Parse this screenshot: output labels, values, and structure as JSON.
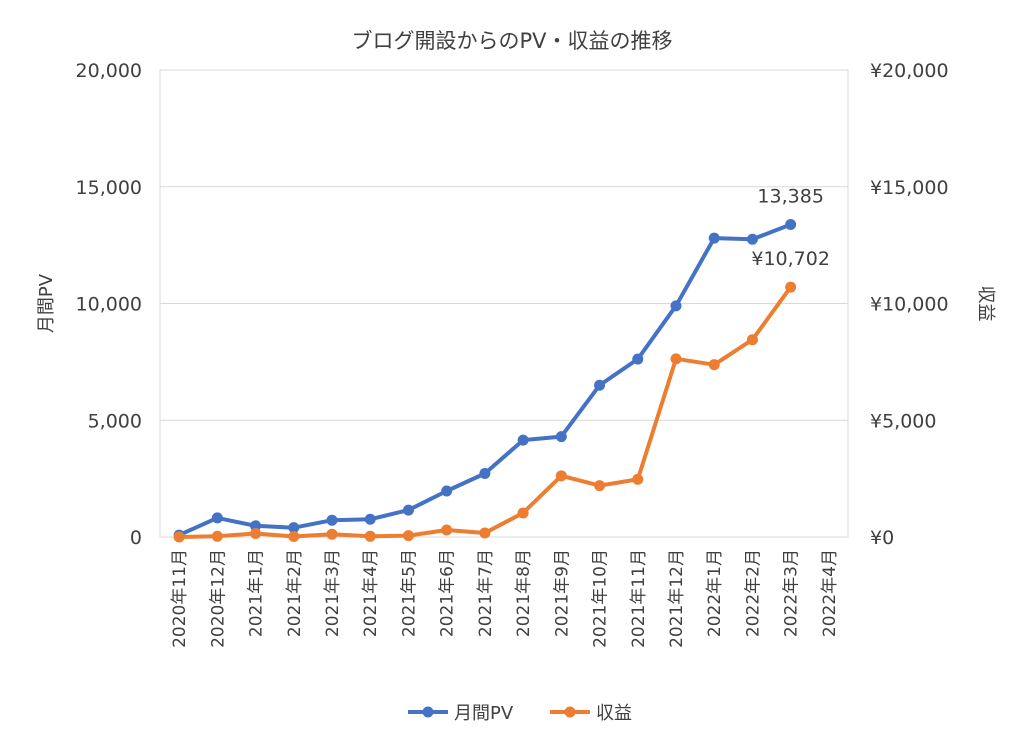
{
  "chart_data": {
    "type": "line",
    "title": "ブログ開設からのPV・収益の推移",
    "categories": [
      "2020年11月",
      "2020年12月",
      "2021年1月",
      "2021年2月",
      "2021年3月",
      "2021年4月",
      "2021年5月",
      "2021年6月",
      "2021年7月",
      "2021年8月",
      "2021年9月",
      "2021年10月",
      "2021年11月",
      "2021年12月",
      "2022年1月",
      "2022年2月",
      "2022年3月",
      "2022年4月"
    ],
    "ylabel": "月間PV",
    "y2label": "収益",
    "ylim": [
      0,
      20000
    ],
    "y2lim": [
      0,
      20000
    ],
    "yticks": [
      "0",
      "5,000",
      "10,000",
      "15,000",
      "20,000"
    ],
    "y2ticks": [
      "¥0",
      "¥5,000",
      "¥10,000",
      "¥15,000",
      "¥20,000"
    ],
    "grid": true,
    "legend": "bottom",
    "series": [
      {
        "name": "月間PV",
        "axis": "left",
        "color": "#4472c4",
        "values": [
          80,
          820,
          480,
          400,
          720,
          760,
          1150,
          1970,
          2720,
          4150,
          4300,
          6500,
          7620,
          9900,
          12800,
          12750,
          13385,
          null
        ],
        "end_label": "13,385"
      },
      {
        "name": "収益",
        "axis": "right",
        "color": "#ed7d31",
        "values": [
          0,
          30,
          150,
          20,
          120,
          30,
          60,
          300,
          170,
          1030,
          2620,
          2200,
          2470,
          7630,
          7380,
          8450,
          10702,
          null
        ],
        "end_label": "¥10,702"
      }
    ]
  }
}
